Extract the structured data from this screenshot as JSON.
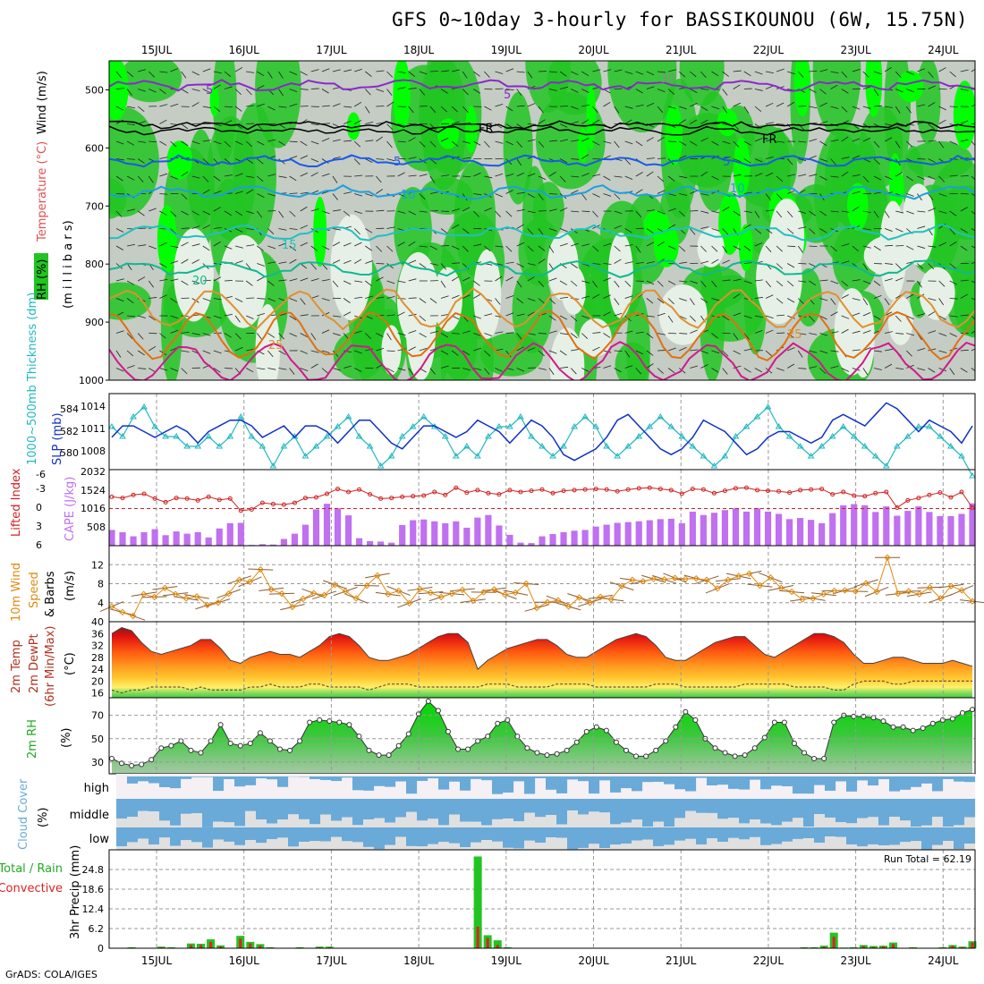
{
  "title": "GFS 0~10day 3-hourly for BASSIKOUNOU (6W, 15.75N)",
  "credit": "GrADS: COLA/IGES",
  "date_labels": [
    "15JUL",
    "16JUL",
    "17JUL",
    "18JUL",
    "19JUL",
    "20JUL",
    "21JUL",
    "22JUL",
    "23JUL",
    "24JUL"
  ],
  "colors": {
    "rh_green": "#22c422",
    "rh_bright": "#00ff00",
    "rh_grey": "#c4ccc4",
    "rh_light": "#e6f0e6",
    "slp": "#1030c8",
    "thickness": "#22b8c0",
    "lifted_index": "#d02020",
    "cape": "#c070f0",
    "wind_speed": "#e08a10",
    "barb": "#8a5a30",
    "cloud": "#6aaad8",
    "precip_total": "#22c422",
    "precip_conv": "#e02020"
  },
  "panel_labels": {
    "rh": "RH (%)",
    "temperature": "Temperature (°C)",
    "wind": "Wind (m/s)",
    "millibars": "(m i l l i b a r s)",
    "thickness": "1000~500mb Thickness (dm)",
    "slp": "SLP (mb)",
    "lifted_index": "Lifted Index",
    "cape": "CAPE (J/kg)",
    "wind10": "10m Wind",
    "speed": "Speed",
    "barbs": "& Barbs",
    "ms": "(m/s)",
    "temp2m": "2m Temp",
    "dewpt": "2m DewPt",
    "minmax": "(6hr Min/Max)",
    "celsius": "(°C)",
    "rh2m": "2m RH",
    "pct": "(%)",
    "cloud_cover": "Cloud Cover",
    "cloud_pct": "(%)",
    "total_rain": "Total / Rain",
    "convective": "Convective",
    "precip": "3hr Precip (mm)",
    "run_total": "Run Total = 62.19"
  },
  "contour_labels": {
    "wind": [
      "5",
      "5",
      "30"
    ],
    "temperature": [
      "FR",
      "FR",
      "5",
      "5",
      "10",
      "10",
      "15",
      "20",
      "25",
      "25"
    ]
  },
  "chart_data": [
    {
      "type": "heatmap",
      "name": "cross_section",
      "yticks": [
        "500",
        "600",
        "700",
        "800",
        "900",
        "1000"
      ],
      "ylim": [
        1000,
        450
      ]
    },
    {
      "type": "line",
      "name": "thickness_slp",
      "left_ticks": [
        "584",
        "582",
        "580"
      ],
      "right_ticks": [
        "1014",
        "1011",
        "1008"
      ],
      "slp_mb": [
        1010,
        1012,
        1012,
        1011,
        1010,
        1011,
        1012,
        1011,
        1009,
        1011,
        1012,
        1013,
        1013,
        1012,
        1010,
        1011,
        1012,
        1010,
        1012,
        1012,
        1011,
        1009,
        1011,
        1013,
        1013,
        1011,
        1009,
        1008,
        1010,
        1012,
        1012,
        1011,
        1010,
        1011,
        1013,
        1012,
        1011,
        1009,
        1011,
        1013,
        1012,
        1010,
        1007,
        1006,
        1007,
        1008,
        1010,
        1013,
        1014,
        1012,
        1010,
        1008,
        1007,
        1008,
        1010,
        1013,
        1012,
        1011,
        1009,
        1007,
        1008,
        1010,
        1011,
        1011,
        1010,
        1009,
        1010,
        1013,
        1014,
        1013,
        1012,
        1014,
        1016,
        1015,
        1013,
        1011,
        1013,
        1012,
        1011,
        1009,
        1012
      ],
      "thickness_dm": [
        583,
        582,
        584,
        585,
        583,
        582,
        582,
        581,
        581,
        582,
        581,
        582,
        584,
        582,
        581,
        579,
        581,
        582,
        580,
        581,
        582,
        583,
        584,
        582,
        581,
        579,
        580,
        582,
        583,
        584,
        583,
        582,
        580,
        581,
        580,
        582,
        583,
        583,
        584,
        582,
        581,
        580,
        581,
        583,
        584,
        583,
        581,
        580,
        581,
        582,
        583,
        584,
        583,
        582,
        581,
        580,
        579,
        580,
        582,
        583,
        584,
        585,
        583,
        582,
        581,
        580,
        581,
        582,
        583,
        582,
        581,
        580,
        579,
        581,
        582,
        583,
        583,
        582,
        581,
        580,
        578
      ],
      "ylim_thickness": [
        579,
        586
      ]
    },
    {
      "type": "bar",
      "name": "lifted_index_cape",
      "left_ticks": [
        "-6",
        "-3",
        "0",
        "3",
        "6"
      ],
      "right_ticks": [
        "2032",
        "1524",
        "1016",
        "508"
      ],
      "lifted_index": [
        -1.8,
        -1.6,
        -2.1,
        -2.3,
        -1.5,
        -0.9,
        -1.6,
        -1.5,
        -1.2,
        -1.8,
        -1.3,
        -1.5,
        0.5,
        0.3,
        -0.8,
        -0.6,
        -0.5,
        -0.8,
        -1.6,
        -1.7,
        -2.3,
        -3.1,
        -2.6,
        -3.0,
        -2.2,
        -1.5,
        -1.6,
        -1.8,
        -1.9,
        -2.0,
        -2.6,
        -2.1,
        -3.3,
        -2.5,
        -2.9,
        -2.4,
        -2.2,
        -2.9,
        -2.6,
        -2.8,
        -3.0,
        -2.4,
        -2.8,
        -2.9,
        -3.0,
        -3.1,
        -3.0,
        -2.7,
        -3.0,
        -3.2,
        -3.3,
        -3.1,
        -2.9,
        -2.3,
        -3.1,
        -3.0,
        -2.4,
        -2.8,
        -3.2,
        -3.3,
        -2.9,
        -2.8,
        -2.7,
        -2.5,
        -2.9,
        -3.0,
        -3.1,
        -2.2,
        -2.6,
        -2.0,
        -1.9,
        -2.4,
        -2.6,
        0.0,
        -1.2,
        -1.6,
        -2.1,
        -2.5,
        -1.7,
        -2.6,
        0.0
      ],
      "cape": [
        420,
        360,
        250,
        360,
        440,
        280,
        380,
        320,
        360,
        220,
        460,
        600,
        610,
        20,
        40,
        30,
        180,
        320,
        560,
        970,
        1120,
        1000,
        810,
        200,
        120,
        110,
        80,
        550,
        680,
        700,
        650,
        600,
        650,
        480,
        750,
        820,
        540,
        290,
        80,
        70,
        250,
        310,
        360,
        400,
        420,
        510,
        560,
        610,
        630,
        650,
        680,
        710,
        720,
        600,
        910,
        820,
        880,
        950,
        1000,
        910,
        1000,
        910,
        850,
        710,
        740,
        690,
        600,
        870,
        1080,
        1110,
        1080,
        900,
        1050,
        800,
        930,
        1050,
        900,
        790,
        790,
        850,
        1130
      ],
      "ylim_cape": [
        0,
        2032
      ]
    },
    {
      "type": "line",
      "name": "wind10",
      "yticks": [
        "12",
        "8",
        "4"
      ],
      "speed": [
        3.2,
        2.0,
        1.2,
        5.8,
        5.2,
        7.1,
        5.8,
        4.9,
        5.3,
        3.5,
        4.0,
        5.9,
        8.8,
        8.4,
        11.0,
        6.8,
        5.9,
        3.1,
        4.8,
        6.0,
        5.6,
        7.8,
        6.4,
        4.9,
        7.6,
        9.7,
        5.8,
        6.5,
        3.9,
        6.9,
        6.1,
        5.2,
        5.9,
        6.7,
        4.4,
        6.2,
        6.8,
        5.7,
        6.1,
        8.0,
        2.9,
        4.1,
        4.5,
        3.2,
        5.1,
        4.0,
        5.2,
        4.7,
        7.5,
        8.8,
        8.5,
        9.0,
        8.9,
        9.2,
        9.0,
        9.1,
        8.8,
        7.0,
        8.8,
        9.6,
        10.1,
        7.6,
        9.3,
        7.1,
        6.3,
        4.7,
        4.9,
        5.8,
        6.5,
        6.6,
        6.4,
        8.1,
        6.3,
        13.5,
        5.9,
        6.4,
        5.8,
        7.2,
        4.9,
        7.5,
        6.6,
        4.3
      ],
      "ylim": [
        0,
        16
      ]
    },
    {
      "type": "area",
      "name": "temp2m",
      "yticks": [
        "40",
        "36",
        "32",
        "28",
        "24",
        "20",
        "16"
      ],
      "temp": [
        36,
        38,
        37,
        33,
        30,
        29,
        30,
        31,
        32,
        34,
        34,
        31,
        27,
        26,
        28,
        29,
        30,
        29,
        29,
        28,
        30,
        32,
        35,
        36,
        35,
        32,
        28,
        27,
        27,
        28,
        29,
        31,
        33,
        35,
        36,
        36,
        33,
        24,
        27,
        29,
        31,
        32,
        33,
        34,
        34,
        32,
        29,
        28,
        28,
        30,
        32,
        34,
        35,
        36,
        35,
        32,
        28,
        27,
        27,
        29,
        31,
        33,
        34,
        35,
        35,
        32,
        29,
        28,
        30,
        32,
        34,
        36,
        36,
        35,
        33,
        29,
        26,
        26,
        27,
        28,
        28,
        27,
        26,
        26,
        26,
        27,
        26,
        25
      ],
      "dewpt": [
        17,
        16,
        17,
        17,
        18,
        18,
        18,
        18,
        17,
        18,
        17,
        17,
        17,
        17,
        18,
        18,
        19,
        18,
        18,
        18,
        19,
        19,
        18,
        18,
        18,
        18,
        17,
        18,
        19,
        19,
        19,
        18,
        18,
        18,
        18,
        18,
        18,
        18,
        19,
        19,
        19,
        18,
        18,
        18,
        18,
        19,
        19,
        19,
        19,
        18,
        18,
        18,
        18,
        18,
        18,
        19,
        19,
        19,
        18,
        18,
        18,
        18,
        18,
        18,
        19,
        19,
        19,
        19,
        19,
        18,
        18,
        18,
        18,
        17,
        17,
        19,
        20,
        20,
        20,
        19,
        19,
        20,
        20,
        20,
        20,
        20,
        20,
        20
      ],
      "ylim": [
        15,
        40
      ]
    },
    {
      "type": "area",
      "name": "rh2m",
      "yticks": [
        "70",
        "50",
        "30"
      ],
      "rh": [
        33,
        29,
        27,
        28,
        32,
        42,
        44,
        48,
        40,
        38,
        48,
        62,
        46,
        44,
        46,
        55,
        48,
        41,
        40,
        48,
        64,
        66,
        65,
        64,
        62,
        52,
        40,
        36,
        36,
        44,
        54,
        71,
        82,
        74,
        56,
        41,
        41,
        48,
        52,
        63,
        66,
        52,
        42,
        38,
        36,
        37,
        40,
        47,
        56,
        60,
        57,
        47,
        40,
        35,
        35,
        40,
        48,
        60,
        73,
        66,
        50,
        42,
        38,
        35,
        36,
        42,
        51,
        64,
        64,
        46,
        38,
        33,
        33,
        64,
        70,
        69,
        69,
        68,
        65,
        60,
        60,
        57,
        59,
        63,
        66,
        67,
        72,
        75
      ],
      "ylim": [
        20,
        85
      ]
    },
    {
      "type": "heatmap",
      "name": "cloud_cover",
      "ylabels": [
        "high",
        "middle",
        "low"
      ]
    },
    {
      "type": "bar",
      "name": "precip_3hr",
      "yticks": [
        "24.8",
        "18.6",
        "12.4",
        "6.2",
        "0"
      ],
      "ylim": [
        0,
        31
      ],
      "total": [
        0,
        0,
        0.3,
        0,
        0,
        0.5,
        0.3,
        0,
        1.5,
        1.4,
        2.8,
        0.9,
        0,
        3.9,
        2.0,
        1.3,
        0.3,
        0,
        0,
        0.3,
        0,
        0.5,
        0.5,
        0,
        0,
        0,
        0,
        0,
        0,
        0,
        0,
        0,
        0,
        0,
        0,
        0,
        0,
        28.9,
        4.1,
        2.5,
        0.3,
        0,
        0,
        0,
        0,
        0,
        0,
        0,
        0,
        0,
        0,
        0,
        0,
        0,
        0,
        0,
        0,
        0,
        0,
        0,
        0,
        0,
        0,
        0,
        0,
        0,
        0,
        0,
        0,
        0,
        0.3,
        0.3,
        0.8,
        4.9,
        0.2,
        0.3,
        1.0,
        0.7,
        0.8,
        1.8,
        0,
        0.3,
        0,
        0,
        0.3,
        1.0,
        0.5,
        2.2
      ],
      "convective": [
        0,
        0,
        0.2,
        0,
        0,
        0.3,
        0.2,
        0,
        1.0,
        1.0,
        2.0,
        0.6,
        0,
        3.0,
        1.5,
        0.8,
        0.2,
        0,
        0,
        0.2,
        0,
        0.3,
        0.3,
        0,
        0,
        0,
        0,
        0,
        0,
        0,
        0,
        0,
        0,
        0,
        0,
        0,
        0,
        6.8,
        3.2,
        1.0,
        0.2,
        0,
        0,
        0,
        0,
        0,
        0,
        0,
        0,
        0,
        0,
        0,
        0,
        0,
        0,
        0,
        0,
        0,
        0,
        0,
        0,
        0,
        0,
        0,
        0,
        0,
        0,
        0,
        0,
        0,
        0.2,
        0.2,
        0.5,
        3.6,
        0.1,
        0.2,
        0.7,
        0.4,
        0.6,
        1.3,
        0,
        0.2,
        0,
        0,
        0.2,
        0.8,
        0.3,
        1.8
      ]
    }
  ]
}
